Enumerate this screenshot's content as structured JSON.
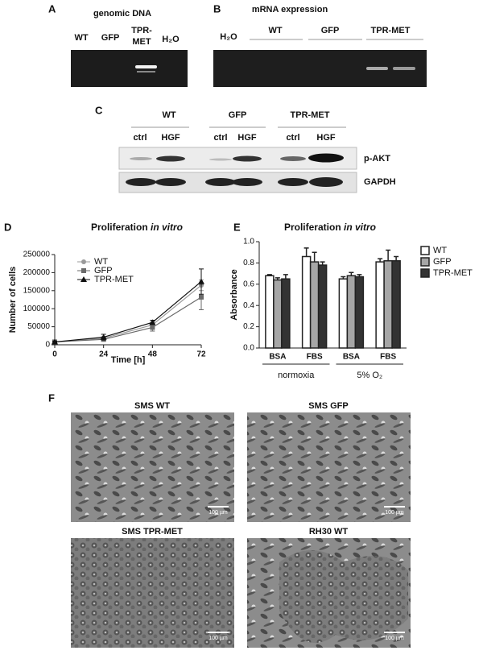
{
  "panels": {
    "a": {
      "label": "A",
      "title": "genomic DNA",
      "lanes": [
        [
          "WT"
        ],
        [
          "GFP"
        ],
        [
          "TPR-",
          "MET"
        ],
        [
          "H₂O"
        ]
      ]
    },
    "b": {
      "label": "B",
      "title": "mRNA expression",
      "lanes": [
        "H₂O",
        "WT",
        "GFP",
        "TPR-MET"
      ]
    },
    "c": {
      "label": "C",
      "groups": [
        "WT",
        "GFP",
        "TPR-MET"
      ],
      "conditions": [
        "ctrl",
        "HGF",
        "ctrl",
        "HGF",
        "ctrl",
        "HGF"
      ],
      "rows": [
        "p-AKT",
        "GAPDH"
      ]
    },
    "f": {
      "label": "F",
      "images": [
        {
          "title": "SMS WT",
          "scale": "100 µm"
        },
        {
          "title": "SMS GFP",
          "scale": "100 µm"
        },
        {
          "title": "SMS TPR-MET",
          "scale": "100 µm"
        },
        {
          "title": "RH30 WT",
          "scale": "100 µm"
        }
      ]
    }
  },
  "chart_data": [
    {
      "type": "line",
      "label": "D",
      "title": "Proliferation",
      "title_italic": "in vitro",
      "x_label": "Time [h]",
      "y_label": "Number of cells",
      "x": [
        0,
        24,
        48,
        72
      ],
      "xlim": [
        0,
        72
      ],
      "xticks": [
        0,
        24,
        48,
        72
      ],
      "ylim": [
        0,
        250000
      ],
      "yticks": [
        0,
        50000,
        100000,
        150000,
        200000,
        250000
      ],
      "legend": "upper-left",
      "series": [
        {
          "name": "WT",
          "color": "#9a9a9a",
          "marker": "circle",
          "values": [
            8000,
            18000,
            55000,
            165000
          ],
          "errors": [
            2000,
            5000,
            8000,
            15000
          ]
        },
        {
          "name": "GFP",
          "color": "#6a6a6a",
          "marker": "square",
          "values": [
            8000,
            15000,
            48000,
            132000
          ],
          "errors": [
            2000,
            4000,
            10000,
            35000
          ]
        },
        {
          "name": "TPR-MET",
          "color": "#111111",
          "marker": "triangle",
          "values": [
            8000,
            21000,
            62000,
            175000
          ],
          "errors": [
            2000,
            8000,
            6000,
            35000
          ]
        }
      ]
    },
    {
      "type": "bar",
      "label": "E",
      "title": "Proliferation",
      "title_italic": "in vitro",
      "y_label": "Absorbance",
      "categories": [
        "BSA",
        "FBS",
        "BSA",
        "FBS"
      ],
      "group_labels": [
        "normoxia",
        "5% O₂"
      ],
      "ylim": [
        0,
        1
      ],
      "yticks": [
        {
          "value": 0,
          "label": "0.0"
        },
        0.2,
        0.4,
        0.6,
        0.8,
        {
          "value": 1,
          "label": "1.0"
        }
      ],
      "legend": "right",
      "series": [
        {
          "name": "WT",
          "color": "#ffffff",
          "values": [
            0.68,
            0.86,
            0.65,
            0.81
          ],
          "errors": [
            0.01,
            0.08,
            0.02,
            0.03
          ]
        },
        {
          "name": "GFP",
          "color": "#a6a6a6",
          "values": [
            0.64,
            0.81,
            0.68,
            0.82
          ],
          "errors": [
            0.02,
            0.09,
            0.03,
            0.1
          ]
        },
        {
          "name": "TPR-MET",
          "color": "#333333",
          "values": [
            0.65,
            0.78,
            0.67,
            0.82
          ],
          "errors": [
            0.04,
            0.03,
            0.02,
            0.04
          ]
        }
      ]
    }
  ]
}
